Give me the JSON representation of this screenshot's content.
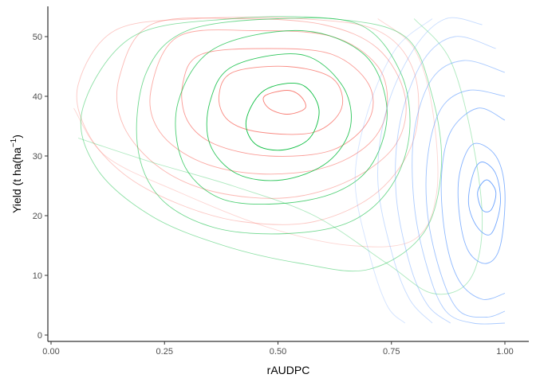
{
  "chart_data": {
    "type": "contour",
    "xlabel": "rAUDPC",
    "ylabel_parts": {
      "main": "Yield (t ha(ha",
      "sup": "−1",
      "close": ")"
    },
    "xlim": [
      0,
      1
    ],
    "ylim": [
      0,
      54
    ],
    "x_ticks": [
      0.0,
      0.25,
      0.5,
      0.75,
      1.0
    ],
    "x_tick_labels": [
      "0.00",
      "0.25",
      "0.50",
      "0.75",
      "1.00"
    ],
    "y_ticks": [
      0,
      10,
      20,
      30,
      40,
      50
    ],
    "y_tick_labels": [
      "0",
      "10",
      "20",
      "30",
      "40",
      "50"
    ],
    "grid": false,
    "legend": "none",
    "series": [
      {
        "color": "#F8766D",
        "peak": {
          "x": 0.52,
          "y": 39
        },
        "contours": [
          {
            "level": 1,
            "points": [
              [
                0.52,
                41
              ],
              [
                0.55,
                40
              ],
              [
                0.56,
                38
              ],
              [
                0.52,
                37
              ],
              [
                0.48,
                38
              ],
              [
                0.47,
                40
              ]
            ]
          },
          {
            "level": 2,
            "points": [
              [
                0.4,
                44
              ],
              [
                0.52,
                45
              ],
              [
                0.62,
                43
              ],
              [
                0.64,
                38
              ],
              [
                0.58,
                34
              ],
              [
                0.46,
                34
              ],
              [
                0.39,
                36
              ],
              [
                0.37,
                40
              ]
            ]
          },
          {
            "level": 3,
            "points": [
              [
                0.33,
                47
              ],
              [
                0.48,
                48
              ],
              [
                0.62,
                47
              ],
              [
                0.7,
                42
              ],
              [
                0.7,
                36
              ],
              [
                0.62,
                31
              ],
              [
                0.48,
                30
              ],
              [
                0.36,
                32
              ],
              [
                0.3,
                36
              ],
              [
                0.29,
                42
              ]
            ]
          },
          {
            "level": 4,
            "points": [
              [
                0.28,
                50
              ],
              [
                0.45,
                51
              ],
              [
                0.62,
                50
              ],
              [
                0.72,
                45
              ],
              [
                0.74,
                38
              ],
              [
                0.7,
                32
              ],
              [
                0.6,
                28
              ],
              [
                0.46,
                27
              ],
              [
                0.33,
                29
              ],
              [
                0.24,
                34
              ],
              [
                0.22,
                41
              ]
            ]
          },
          {
            "level": 5,
            "points": [
              [
                0.22,
                52
              ],
              [
                0.42,
                53
              ],
              [
                0.6,
                52
              ],
              [
                0.72,
                48
              ],
              [
                0.78,
                40
              ],
              [
                0.76,
                32
              ],
              [
                0.66,
                26
              ],
              [
                0.52,
                23
              ],
              [
                0.36,
                24
              ],
              [
                0.24,
                28
              ],
              [
                0.16,
                35
              ],
              [
                0.15,
                43
              ]
            ]
          },
          {
            "level": 6,
            "points": [
              [
                0.14,
                51
              ],
              [
                0.32,
                53
              ],
              [
                0.55,
                53
              ],
              [
                0.72,
                51
              ],
              [
                0.8,
                44
              ],
              [
                0.8,
                33
              ],
              [
                0.72,
                24
              ],
              [
                0.58,
                19
              ],
              [
                0.42,
                19
              ],
              [
                0.28,
                22
              ],
              [
                0.16,
                27
              ],
              [
                0.08,
                34
              ],
              [
                0.06,
                42
              ]
            ]
          },
          {
            "level": 7,
            "points": [
              [
                0.05,
                38
              ],
              [
                0.12,
                30
              ],
              [
                0.28,
                24
              ],
              [
                0.48,
                18
              ],
              [
                0.66,
                15
              ],
              [
                0.8,
                16
              ],
              [
                0.85,
                24
              ],
              [
                0.84,
                38
              ],
              [
                0.8,
                48
              ],
              [
                0.72,
                53
              ]
            ]
          }
        ]
      },
      {
        "color": "#00BA38",
        "peak": {
          "x": 0.52,
          "y": 37
        },
        "contours": [
          {
            "level": 1,
            "points": [
              [
                0.47,
                41
              ],
              [
                0.55,
                42
              ],
              [
                0.59,
                38
              ],
              [
                0.57,
                33
              ],
              [
                0.51,
                31
              ],
              [
                0.45,
                32
              ],
              [
                0.43,
                36
              ]
            ]
          },
          {
            "level": 2,
            "points": [
              [
                0.4,
                45
              ],
              [
                0.55,
                47
              ],
              [
                0.64,
                42
              ],
              [
                0.66,
                35
              ],
              [
                0.61,
                29
              ],
              [
                0.51,
                26
              ],
              [
                0.41,
                27
              ],
              [
                0.35,
                32
              ],
              [
                0.35,
                39
              ]
            ]
          },
          {
            "level": 3,
            "points": [
              [
                0.36,
                48
              ],
              [
                0.55,
                51
              ],
              [
                0.69,
                47
              ],
              [
                0.74,
                38
              ],
              [
                0.71,
                29
              ],
              [
                0.63,
                24
              ],
              [
                0.5,
                22
              ],
              [
                0.37,
                23
              ],
              [
                0.29,
                29
              ],
              [
                0.28,
                39
              ]
            ]
          },
          {
            "level": 4,
            "points": [
              [
                0.3,
                51
              ],
              [
                0.5,
                53
              ],
              [
                0.68,
                52
              ],
              [
                0.77,
                44
              ],
              [
                0.79,
                34
              ],
              [
                0.75,
                25
              ],
              [
                0.66,
                19
              ],
              [
                0.52,
                17
              ],
              [
                0.36,
                18
              ],
              [
                0.24,
                23
              ],
              [
                0.19,
                32
              ],
              [
                0.21,
                44
              ]
            ]
          },
          {
            "level": 5,
            "points": [
              [
                0.18,
                50
              ],
              [
                0.4,
                53
              ],
              [
                0.62,
                53
              ],
              [
                0.78,
                50
              ],
              [
                0.84,
                40
              ],
              [
                0.86,
                28
              ],
              [
                0.82,
                17
              ],
              [
                0.7,
                11
              ],
              [
                0.55,
                12
              ],
              [
                0.38,
                15
              ],
              [
                0.22,
                20
              ],
              [
                0.1,
                28
              ],
              [
                0.07,
                38
              ]
            ]
          },
          {
            "level": 6,
            "points": [
              [
                0.06,
                33
              ],
              [
                0.22,
                29
              ],
              [
                0.4,
                25
              ],
              [
                0.58,
                20
              ],
              [
                0.74,
                12
              ],
              [
                0.84,
                7
              ],
              [
                0.92,
                9
              ],
              [
                0.95,
                18
              ],
              [
                0.93,
                32
              ],
              [
                0.88,
                46
              ],
              [
                0.8,
                53
              ]
            ]
          }
        ]
      },
      {
        "color": "#619CFF",
        "peak": {
          "x": 0.96,
          "y": 23
        },
        "contours": [
          {
            "level": 1,
            "points": [
              [
                0.96,
                26
              ],
              [
                0.98,
                24
              ],
              [
                0.97,
                21
              ],
              [
                0.95,
                21
              ],
              [
                0.94,
                24
              ]
            ]
          },
          {
            "level": 2,
            "points": [
              [
                0.95,
                29
              ],
              [
                0.98,
                27
              ],
              [
                0.99,
                22
              ],
              [
                0.97,
                17
              ],
              [
                0.94,
                18
              ],
              [
                0.92,
                22
              ],
              [
                0.93,
                27
              ]
            ]
          },
          {
            "level": 3,
            "points": [
              [
                0.93,
                32
              ],
              [
                0.98,
                30
              ],
              [
                1.0,
                24
              ],
              [
                0.99,
                15
              ],
              [
                0.96,
                12
              ],
              [
                0.92,
                14
              ],
              [
                0.9,
                20
              ],
              [
                0.9,
                27
              ]
            ]
          },
          {
            "level": 4,
            "points": [
              [
                1.0,
                36
              ],
              [
                0.94,
                38
              ],
              [
                0.88,
                34
              ],
              [
                0.86,
                26
              ],
              [
                0.87,
                16
              ],
              [
                0.9,
                9
              ],
              [
                0.95,
                6
              ],
              [
                1.0,
                7
              ]
            ]
          },
          {
            "level": 5,
            "points": [
              [
                1.0,
                40
              ],
              [
                0.92,
                41
              ],
              [
                0.86,
                38
              ],
              [
                0.83,
                30
              ],
              [
                0.83,
                20
              ],
              [
                0.86,
                10
              ],
              [
                0.9,
                4
              ],
              [
                0.96,
                3
              ],
              [
                1.0,
                4
              ]
            ]
          },
          {
            "level": 6,
            "points": [
              [
                1.0,
                44
              ],
              [
                0.91,
                46
              ],
              [
                0.84,
                43
              ],
              [
                0.8,
                34
              ],
              [
                0.8,
                22
              ],
              [
                0.83,
                11
              ],
              [
                0.87,
                4
              ],
              [
                0.93,
                2
              ],
              [
                1.0,
                2
              ]
            ]
          },
          {
            "level": 7,
            "points": [
              [
                0.98,
                48
              ],
              [
                0.89,
                50
              ],
              [
                0.82,
                46
              ],
              [
                0.77,
                36
              ],
              [
                0.76,
                24
              ],
              [
                0.79,
                12
              ],
              [
                0.83,
                5
              ],
              [
                0.88,
                2
              ]
            ]
          },
          {
            "level": 8,
            "points": [
              [
                0.95,
                52
              ],
              [
                0.87,
                53
              ],
              [
                0.8,
                48
              ],
              [
                0.74,
                38
              ],
              [
                0.72,
                26
              ],
              [
                0.75,
                14
              ],
              [
                0.79,
                6
              ],
              [
                0.84,
                2
              ]
            ]
          },
          {
            "level": 9,
            "points": [
              [
                0.84,
                53
              ],
              [
                0.76,
                48
              ],
              [
                0.7,
                38
              ],
              [
                0.67,
                26
              ],
              [
                0.7,
                14
              ],
              [
                0.74,
                5
              ],
              [
                0.78,
                2
              ]
            ]
          }
        ]
      }
    ]
  }
}
